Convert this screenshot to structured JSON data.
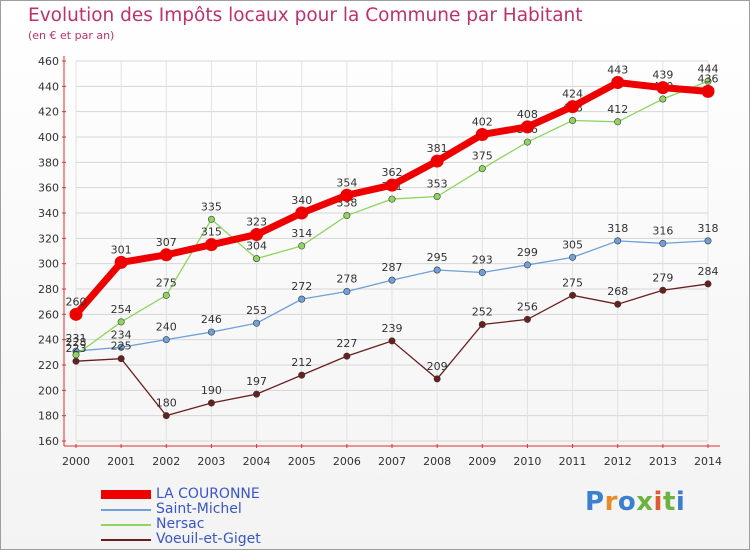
{
  "title": "Evolution des Impôts locaux pour la Commune par Habitant",
  "subtitle": "(en € et par an)",
  "logo": {
    "text": "Proxiti",
    "letters": [
      {
        "ch": "P",
        "color": "#3b7fd0"
      },
      {
        "ch": "r",
        "color": "#e98a25"
      },
      {
        "ch": "o",
        "color": "#3b7fd0"
      },
      {
        "ch": "x",
        "color": "#6db33f"
      },
      {
        "ch": "i",
        "color": "#e05a30"
      },
      {
        "ch": "t",
        "color": "#6db33f"
      },
      {
        "ch": "i",
        "color": "#3b7fd0"
      }
    ]
  },
  "chart_data": {
    "type": "line",
    "title": "Evolution des Impôts locaux pour la Commune par Habitant",
    "subtitle": "(en € et par an)",
    "x": [
      2000,
      2001,
      2002,
      2003,
      2004,
      2005,
      2006,
      2007,
      2008,
      2009,
      2010,
      2011,
      2012,
      2013,
      2014
    ],
    "ylim": [
      160,
      460
    ],
    "yticks": [
      160,
      180,
      200,
      220,
      240,
      260,
      280,
      300,
      320,
      340,
      360,
      380,
      400,
      420,
      440,
      460
    ],
    "grid": true,
    "legend_position": "bottom-left",
    "series": [
      {
        "name": "LA COURONNE",
        "color": "#ee0000",
        "emphasis": true,
        "values": [
          260,
          301,
          307,
          315,
          323,
          340,
          354,
          362,
          381,
          402,
          408,
          424,
          443,
          439,
          436
        ]
      },
      {
        "name": "Saint-Michel",
        "color": "#6fa0d8",
        "values": [
          231,
          234,
          240,
          246,
          253,
          272,
          278,
          287,
          295,
          293,
          299,
          305,
          318,
          316,
          318
        ]
      },
      {
        "name": "Nersac",
        "color": "#8fd45e",
        "values": [
          228,
          254,
          275,
          335,
          304,
          314,
          338,
          351,
          353,
          375,
          396,
          413,
          412,
          430,
          444
        ]
      },
      {
        "name": "Voeuil-et-Giget",
        "color": "#6a1f1f",
        "values": [
          223,
          225,
          180,
          190,
          197,
          212,
          227,
          239,
          209,
          252,
          256,
          275,
          268,
          279,
          284
        ]
      }
    ]
  }
}
